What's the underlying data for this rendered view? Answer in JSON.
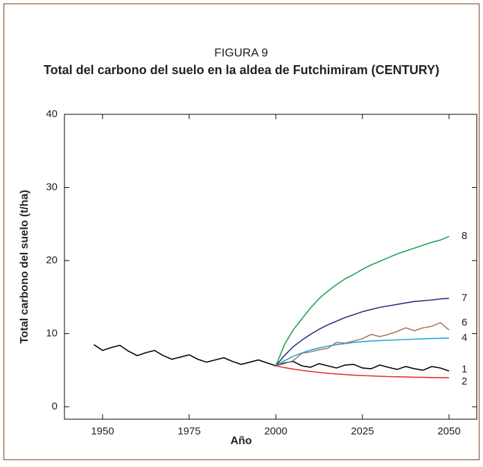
{
  "chart_data": {
    "type": "line",
    "title": "FIGURA 9",
    "subtitle": "Total del carbono del suelo en la aldea de Futchimiram (CENTURY)",
    "x_label": "Año",
    "y_label": "Total carbono del suelo (t/ha)",
    "x": [
      1947.5,
      1950,
      1952.5,
      1955,
      1957.5,
      1960,
      1962.5,
      1965,
      1967.5,
      1970,
      1972.5,
      1975,
      1977.5,
      1980,
      1982.5,
      1985,
      1987.5,
      1990,
      1992.5,
      1995,
      1997.5,
      2000,
      2002.5,
      2005,
      2007.5,
      2010,
      2012.5,
      2015,
      2017.5,
      2020,
      2022.5,
      2025,
      2027.5,
      2030,
      2032.5,
      2035,
      2037.5,
      2040,
      2042.5,
      2045,
      2047.5,
      2050
    ],
    "series": [
      {
        "name": "1",
        "color": "#000000",
        "values": [
          8.5,
          7.7,
          8.1,
          8.4,
          7.6,
          7.0,
          7.4,
          7.7,
          7.0,
          6.5,
          6.8,
          7.1,
          6.5,
          6.1,
          6.4,
          6.7,
          6.2,
          5.8,
          6.1,
          6.4,
          6.0,
          5.6,
          6.0,
          6.2,
          5.6,
          5.4,
          5.9,
          5.6,
          5.3,
          5.7,
          5.8,
          5.3,
          5.2,
          5.7,
          5.4,
          5.1,
          5.5,
          5.2,
          5.0,
          5.5,
          5.3,
          4.9
        ]
      },
      {
        "name": "2",
        "color": "#e0312a",
        "values": [
          null,
          null,
          null,
          null,
          null,
          null,
          null,
          null,
          null,
          null,
          null,
          null,
          null,
          null,
          null,
          null,
          null,
          null,
          null,
          null,
          null,
          5.6,
          5.35,
          5.15,
          4.98,
          4.83,
          4.7,
          4.58,
          4.48,
          4.4,
          4.33,
          4.27,
          4.22,
          4.17,
          4.13,
          4.1,
          4.07,
          4.04,
          4.02,
          4.0,
          3.98,
          3.96
        ]
      },
      {
        "name": "4",
        "color": "#1aa6de",
        "values": [
          null,
          null,
          null,
          null,
          null,
          null,
          null,
          null,
          null,
          null,
          null,
          null,
          null,
          null,
          null,
          null,
          null,
          null,
          null,
          null,
          null,
          5.6,
          6.3,
          6.9,
          7.35,
          7.75,
          8.05,
          8.3,
          8.5,
          8.65,
          8.8,
          8.9,
          9.0,
          9.05,
          9.1,
          9.15,
          9.2,
          9.25,
          9.3,
          9.33,
          9.36,
          9.4
        ]
      },
      {
        "name": "6",
        "color": "#a57862",
        "values": [
          null,
          null,
          null,
          null,
          null,
          null,
          null,
          null,
          null,
          null,
          null,
          null,
          null,
          null,
          null,
          null,
          null,
          null,
          null,
          null,
          null,
          5.6,
          5.9,
          6.3,
          7.3,
          7.5,
          7.8,
          8.0,
          8.8,
          8.7,
          9.0,
          9.3,
          9.9,
          9.6,
          9.9,
          10.3,
          10.8,
          10.4,
          10.8,
          11.0,
          11.5,
          10.5
        ]
      },
      {
        "name": "7",
        "color": "#2b2f86",
        "values": [
          null,
          null,
          null,
          null,
          null,
          null,
          null,
          null,
          null,
          null,
          null,
          null,
          null,
          null,
          null,
          null,
          null,
          null,
          null,
          null,
          null,
          5.6,
          7.0,
          8.2,
          9.1,
          9.9,
          10.6,
          11.2,
          11.7,
          12.2,
          12.6,
          13.0,
          13.3,
          13.6,
          13.8,
          14.0,
          14.2,
          14.4,
          14.5,
          14.6,
          14.75,
          14.85
        ]
      },
      {
        "name": "8",
        "color": "#1ba24b",
        "values": [
          null,
          null,
          null,
          null,
          null,
          null,
          null,
          null,
          null,
          null,
          null,
          null,
          null,
          null,
          null,
          null,
          null,
          null,
          null,
          null,
          null,
          5.6,
          8.5,
          10.5,
          12.0,
          13.5,
          14.8,
          15.8,
          16.7,
          17.5,
          18.1,
          18.8,
          19.4,
          19.9,
          20.4,
          20.9,
          21.3,
          21.7,
          22.1,
          22.5,
          22.8,
          23.3
        ]
      }
    ],
    "xlim": [
      1939,
      2058
    ],
    "xticks": [
      1950,
      1975,
      2000,
      2025,
      2050
    ],
    "ylim": [
      -1.7,
      40
    ],
    "yticks": [
      0,
      10,
      20,
      30,
      40
    ]
  }
}
